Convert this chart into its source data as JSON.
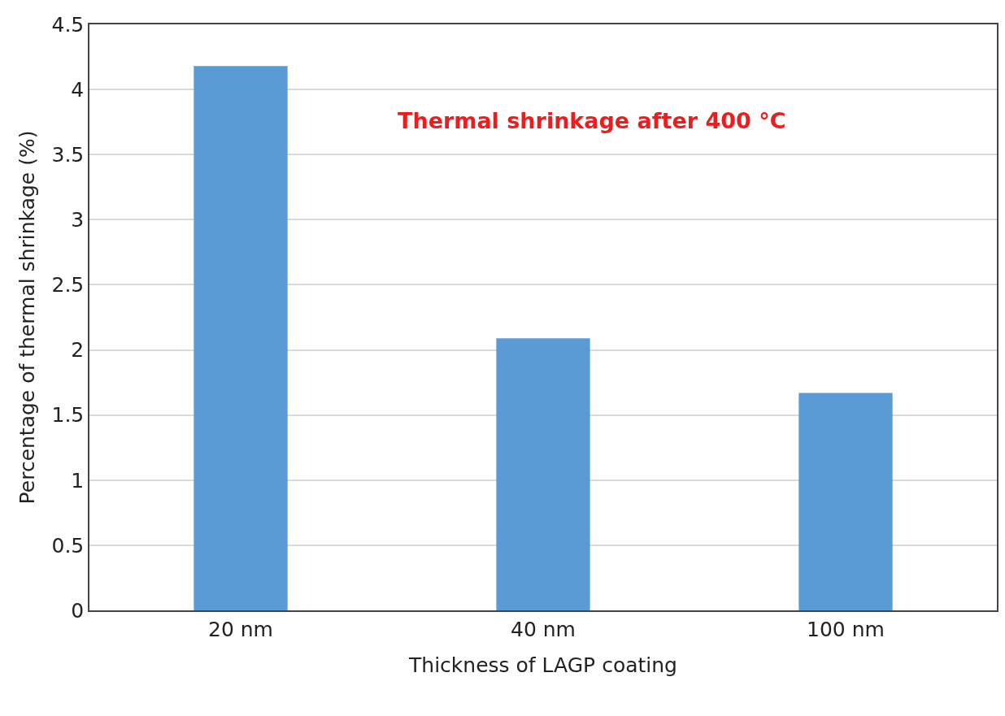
{
  "chart_data": {
    "type": "bar",
    "xlabel": "Thickness of LAGP coating",
    "ylabel": "Percentage of thermal shrinkage (%)",
    "categories": [
      "20 nm",
      "40 nm",
      "100 nm"
    ],
    "values": [
      4.18,
      2.09,
      1.67
    ],
    "color": "#5b9bd5",
    "ylim": [
      0,
      4.5
    ],
    "yticks": [
      0,
      0.5,
      1,
      1.5,
      2,
      2.5,
      3,
      3.5,
      4,
      4.5
    ],
    "grid": "y",
    "annotations": [
      "Thermal shrinkage after 400 °C"
    ]
  }
}
